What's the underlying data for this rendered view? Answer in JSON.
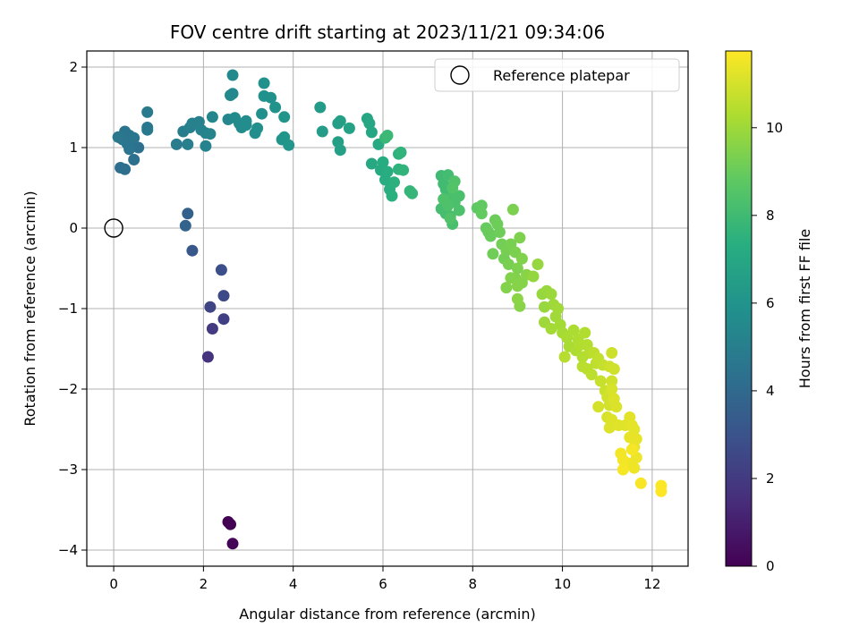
{
  "chart_data": {
    "type": "scatter",
    "title": "FOV centre drift starting at 2023/11/21 09:34:06",
    "xlabel": "Angular distance from reference (arcmin)",
    "ylabel": "Rotation from reference (arcmin)",
    "xlim": [
      -0.6,
      12.8
    ],
    "ylim": [
      -4.2,
      2.2
    ],
    "x_ticks": [
      0,
      2,
      4,
      6,
      8,
      10,
      12
    ],
    "y_ticks": [
      -4,
      -3,
      -2,
      -1,
      0,
      1,
      2
    ],
    "x_tick_labels": [
      "0",
      "2",
      "4",
      "6",
      "8",
      "10",
      "12"
    ],
    "y_tick_labels": [
      "−4",
      "−3",
      "−2",
      "−1",
      "0",
      "1",
      "2"
    ],
    "grid": true,
    "legend": {
      "placement": "top-right",
      "entries": [
        "Reference platepar"
      ]
    },
    "reference_point": {
      "x": 0,
      "y": 0
    },
    "colorbar": {
      "label": "Hours from first FF file",
      "colormap": "viridis",
      "range": [
        0,
        11.75
      ],
      "ticks": [
        0,
        2,
        4,
        6,
        8,
        10
      ],
      "tick_labels": [
        "0",
        "2",
        "4",
        "6",
        "8",
        "10"
      ]
    },
    "points": [
      [
        2.55,
        -3.65,
        0.0
      ],
      [
        2.6,
        -3.68,
        0.05
      ],
      [
        2.65,
        -3.92,
        0.15
      ],
      [
        2.1,
        -1.6,
        1.7
      ],
      [
        2.2,
        -1.25,
        2.0
      ],
      [
        2.45,
        -1.13,
        2.2
      ],
      [
        2.15,
        -0.98,
        2.4
      ],
      [
        2.45,
        -0.84,
        2.6
      ],
      [
        2.4,
        -0.52,
        2.8
      ],
      [
        1.75,
        -0.28,
        3.2
      ],
      [
        1.65,
        0.18,
        3.6
      ],
      [
        1.6,
        0.03,
        3.7
      ],
      [
        0.15,
        0.75,
        4.2
      ],
      [
        0.25,
        0.73,
        4.25
      ],
      [
        0.45,
        0.85,
        4.3
      ],
      [
        0.55,
        1.0,
        4.35
      ],
      [
        0.4,
        1.05,
        4.4
      ],
      [
        0.15,
        1.12,
        4.45
      ],
      [
        0.25,
        1.2,
        4.5
      ],
      [
        0.35,
        1.15,
        4.5
      ],
      [
        0.3,
        1.05,
        4.55
      ],
      [
        0.2,
        1.1,
        4.55
      ],
      [
        0.45,
        1.12,
        4.6
      ],
      [
        0.35,
        0.98,
        4.6
      ],
      [
        0.1,
        1.13,
        4.65
      ],
      [
        0.75,
        1.25,
        4.7
      ],
      [
        0.75,
        1.22,
        4.75
      ],
      [
        0.75,
        1.44,
        4.8
      ],
      [
        1.4,
        1.04,
        4.9
      ],
      [
        1.55,
        1.2,
        4.95
      ],
      [
        1.65,
        1.04,
        5.0
      ],
      [
        1.7,
        1.25,
        5.0
      ],
      [
        1.75,
        1.3,
        5.05
      ],
      [
        1.9,
        1.32,
        5.1
      ],
      [
        1.95,
        1.22,
        5.15
      ],
      [
        2.05,
        1.18,
        5.2
      ],
      [
        2.05,
        1.02,
        5.2
      ],
      [
        2.15,
        1.17,
        5.25
      ],
      [
        2.2,
        1.38,
        5.3
      ],
      [
        2.55,
        1.35,
        5.4
      ],
      [
        2.6,
        1.65,
        5.45
      ],
      [
        2.65,
        1.9,
        5.5
      ],
      [
        2.65,
        1.67,
        5.5
      ],
      [
        2.7,
        1.37,
        5.55
      ],
      [
        2.8,
        1.3,
        5.6
      ],
      [
        2.85,
        1.25,
        5.6
      ],
      [
        2.95,
        1.28,
        5.65
      ],
      [
        2.95,
        1.33,
        5.7
      ],
      [
        3.15,
        1.18,
        5.8
      ],
      [
        3.2,
        1.24,
        5.8
      ],
      [
        3.3,
        1.42,
        5.85
      ],
      [
        3.35,
        1.8,
        5.9
      ],
      [
        3.35,
        1.64,
        5.9
      ],
      [
        3.5,
        1.62,
        5.95
      ],
      [
        3.6,
        1.5,
        6.0
      ],
      [
        3.75,
        1.1,
        6.05
      ],
      [
        3.8,
        1.38,
        6.1
      ],
      [
        3.8,
        1.13,
        6.1
      ],
      [
        3.9,
        1.03,
        6.15
      ],
      [
        4.6,
        1.5,
        6.4
      ],
      [
        4.65,
        1.2,
        6.45
      ],
      [
        5.0,
        1.3,
        6.55
      ],
      [
        5.05,
        1.33,
        6.6
      ],
      [
        5.0,
        1.07,
        6.6
      ],
      [
        5.05,
        0.97,
        6.65
      ],
      [
        5.25,
        1.24,
        6.7
      ],
      [
        5.65,
        1.36,
        6.9
      ],
      [
        5.7,
        1.3,
        6.95
      ],
      [
        5.75,
        1.19,
        7.0
      ],
      [
        5.75,
        0.8,
        7.05
      ],
      [
        5.9,
        1.04,
        7.1
      ],
      [
        5.95,
        0.72,
        7.15
      ],
      [
        6.0,
        0.82,
        7.2
      ],
      [
        6.05,
        0.6,
        7.25
      ],
      [
        6.1,
        0.7,
        7.3
      ],
      [
        6.15,
        0.48,
        7.35
      ],
      [
        6.2,
        0.4,
        7.4
      ],
      [
        6.25,
        0.57,
        7.45
      ],
      [
        6.35,
        0.92,
        7.5
      ],
      [
        6.35,
        0.73,
        7.55
      ],
      [
        6.4,
        0.94,
        7.6
      ],
      [
        6.45,
        0.72,
        7.6
      ],
      [
        6.6,
        0.46,
        7.7
      ],
      [
        6.65,
        0.43,
        7.75
      ],
      [
        6.05,
        1.12,
        7.8
      ],
      [
        6.1,
        1.15,
        7.85
      ],
      [
        7.3,
        0.65,
        8.0
      ],
      [
        7.35,
        0.55,
        8.05
      ],
      [
        7.4,
        0.48,
        8.05
      ],
      [
        7.45,
        0.66,
        8.1
      ],
      [
        7.5,
        0.38,
        8.1
      ],
      [
        7.3,
        0.24,
        8.15
      ],
      [
        7.4,
        0.18,
        8.15
      ],
      [
        7.45,
        0.3,
        8.2
      ],
      [
        7.5,
        0.15,
        8.2
      ],
      [
        7.55,
        0.05,
        8.25
      ],
      [
        7.55,
        0.4,
        8.25
      ],
      [
        7.6,
        0.32,
        8.3
      ],
      [
        7.7,
        0.4,
        8.3
      ],
      [
        7.7,
        0.22,
        8.35
      ],
      [
        7.35,
        0.36,
        8.4
      ],
      [
        7.45,
        0.28,
        8.4
      ],
      [
        7.6,
        0.58,
        8.45
      ],
      [
        7.5,
        0.12,
        8.45
      ],
      [
        7.55,
        0.5,
        8.5
      ],
      [
        8.1,
        0.25,
        8.8
      ],
      [
        8.2,
        0.28,
        8.85
      ],
      [
        8.2,
        0.18,
        8.9
      ],
      [
        8.3,
        0.0,
        8.95
      ],
      [
        8.35,
        -0.05,
        9.0
      ],
      [
        8.4,
        -0.1,
        9.0
      ],
      [
        8.5,
        0.1,
        9.05
      ],
      [
        8.55,
        0.05,
        9.1
      ],
      [
        8.6,
        -0.05,
        9.1
      ],
      [
        8.45,
        -0.32,
        9.15
      ],
      [
        8.65,
        -0.2,
        9.2
      ],
      [
        8.7,
        -0.38,
        9.2
      ],
      [
        8.75,
        -0.28,
        9.25
      ],
      [
        8.8,
        -0.45,
        9.3
      ],
      [
        8.85,
        -0.2,
        9.3
      ],
      [
        8.9,
        0.23,
        9.35
      ],
      [
        8.95,
        -0.3,
        9.35
      ],
      [
        9.0,
        -0.5,
        9.4
      ],
      [
        9.05,
        -0.12,
        9.4
      ],
      [
        9.1,
        -0.38,
        9.45
      ],
      [
        8.95,
        -0.62,
        9.45
      ],
      [
        8.85,
        -0.62,
        9.5
      ],
      [
        8.75,
        -0.74,
        9.5
      ],
      [
        9.0,
        -0.72,
        9.55
      ],
      [
        9.1,
        -0.68,
        9.55
      ],
      [
        9.05,
        -0.97,
        9.6
      ],
      [
        9.2,
        -0.58,
        9.6
      ],
      [
        9.0,
        -0.88,
        9.65
      ],
      [
        9.35,
        -0.6,
        9.8
      ],
      [
        9.45,
        -0.45,
        9.85
      ],
      [
        9.55,
        -0.82,
        9.85
      ],
      [
        9.6,
        -0.98,
        9.9
      ],
      [
        9.65,
        -0.78,
        9.9
      ],
      [
        9.75,
        -0.82,
        9.95
      ],
      [
        9.8,
        -0.95,
        10.0
      ],
      [
        9.6,
        -1.17,
        10.0
      ],
      [
        9.85,
        -1.1,
        10.05
      ],
      [
        9.9,
        -1.0,
        10.05
      ],
      [
        9.95,
        -1.2,
        10.1
      ],
      [
        9.75,
        -1.25,
        10.1
      ],
      [
        10.0,
        -1.3,
        10.15
      ],
      [
        10.1,
        -1.36,
        10.2
      ],
      [
        10.15,
        -1.47,
        10.2
      ],
      [
        10.25,
        -1.27,
        10.25
      ],
      [
        10.35,
        -1.38,
        10.3
      ],
      [
        10.3,
        -1.52,
        10.3
      ],
      [
        10.4,
        -1.45,
        10.35
      ],
      [
        10.5,
        -1.3,
        10.35
      ],
      [
        10.55,
        -1.45,
        10.4
      ],
      [
        10.45,
        -1.6,
        10.4
      ],
      [
        10.6,
        -1.55,
        10.45
      ],
      [
        10.05,
        -1.6,
        10.45
      ],
      [
        10.45,
        -1.72,
        10.5
      ],
      [
        10.55,
        -1.75,
        10.5
      ],
      [
        10.65,
        -1.82,
        10.55
      ],
      [
        10.7,
        -1.55,
        10.6
      ],
      [
        10.75,
        -1.68,
        10.6
      ],
      [
        10.8,
        -1.62,
        10.65
      ],
      [
        10.9,
        -1.7,
        10.7
      ],
      [
        10.85,
        -1.9,
        10.75
      ],
      [
        10.95,
        -2.02,
        10.8
      ],
      [
        11.05,
        -1.72,
        10.85
      ],
      [
        11.1,
        -1.55,
        10.85
      ],
      [
        11.15,
        -1.75,
        10.9
      ],
      [
        11.1,
        -1.9,
        10.9
      ],
      [
        11.0,
        -2.1,
        10.95
      ],
      [
        11.05,
        -2.2,
        11.0
      ],
      [
        10.8,
        -2.22,
        11.0
      ],
      [
        11.0,
        -2.35,
        11.05
      ],
      [
        11.1,
        -2.0,
        11.05
      ],
      [
        11.15,
        -2.12,
        11.1
      ],
      [
        11.2,
        -2.22,
        11.1
      ],
      [
        11.05,
        -2.48,
        11.15
      ],
      [
        11.1,
        -2.38,
        11.15
      ],
      [
        11.25,
        -2.45,
        11.2
      ],
      [
        11.4,
        -2.45,
        11.2
      ],
      [
        11.5,
        -2.35,
        11.25
      ],
      [
        11.55,
        -2.45,
        11.3
      ],
      [
        11.6,
        -2.5,
        11.3
      ],
      [
        11.5,
        -2.6,
        11.35
      ],
      [
        11.65,
        -2.62,
        11.35
      ],
      [
        11.6,
        -2.72,
        11.4
      ],
      [
        11.65,
        -2.85,
        11.45
      ],
      [
        11.6,
        -2.98,
        11.5
      ],
      [
        11.45,
        -2.92,
        11.5
      ],
      [
        11.35,
        -2.88,
        11.55
      ],
      [
        11.3,
        -2.8,
        11.55
      ],
      [
        11.35,
        -3.0,
        11.6
      ],
      [
        11.55,
        -2.75,
        11.6
      ],
      [
        11.75,
        -3.17,
        11.65
      ],
      [
        12.2,
        -3.2,
        11.7
      ],
      [
        12.2,
        -3.27,
        11.75
      ]
    ]
  }
}
